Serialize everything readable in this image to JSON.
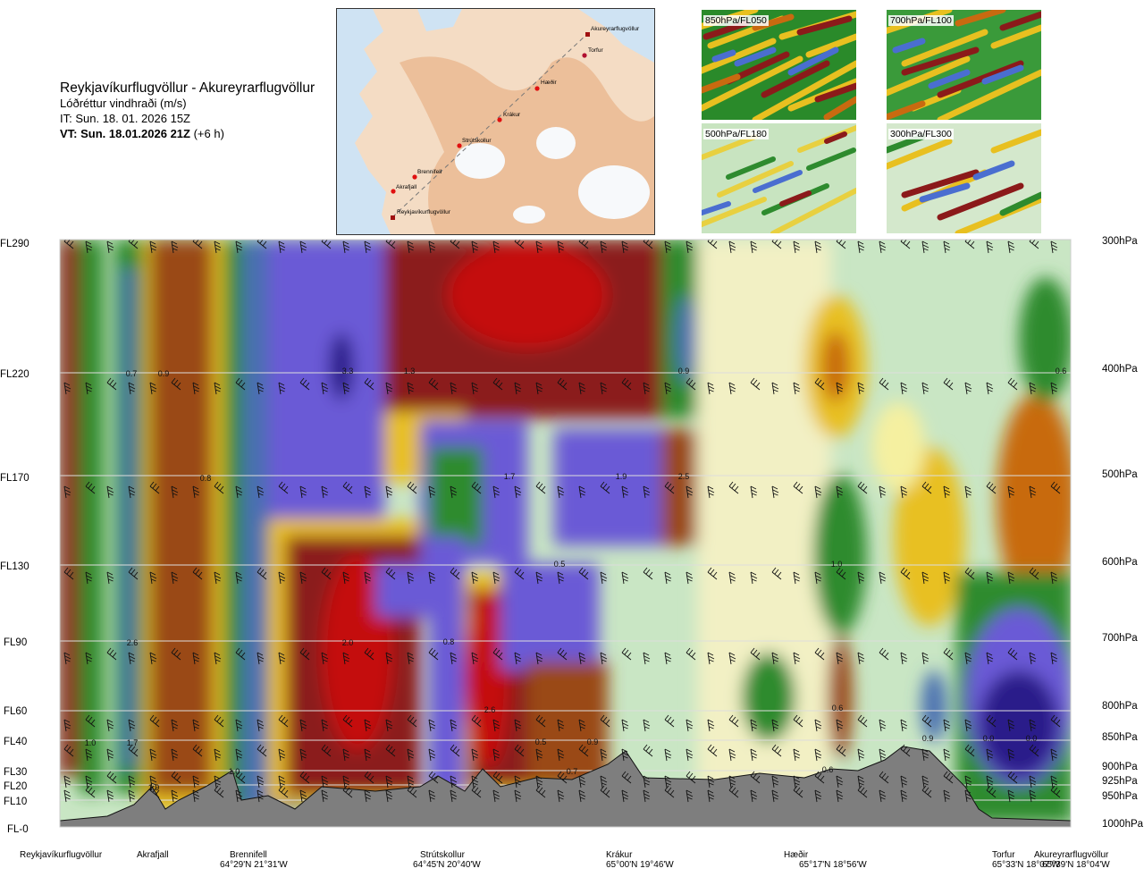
{
  "header": {
    "route": "Reykjavíkurflugvöllur - Akureyrarflugvöllur",
    "product": "Lóðréttur vindhraði (m/s)",
    "it": "IT: Sun. 18. 01. 2026 15Z",
    "vt_bold": "VT: Sun. 18.01.2026 21Z",
    "vt_offset": "(+6 h)"
  },
  "route_map": {
    "waypoints": [
      "Akureyrarflugvöllur",
      "Torfur",
      "Hæðir",
      "Krákur",
      "Strútskollur",
      "Brennifell",
      "Akrafjall",
      "Reykjavíkurflugvöllur"
    ]
  },
  "mini_maps": [
    {
      "label": "850hPa/FL050"
    },
    {
      "label": "700hPa/FL100"
    },
    {
      "label": "500hPa/FL180"
    },
    {
      "label": "300hPa/FL300"
    }
  ],
  "bottom_stations": [
    {
      "name": "Reykjavíkurflugvöllur",
      "coords": ""
    },
    {
      "name": "Akrafjall",
      "coords": ""
    },
    {
      "name": "Brennifell",
      "coords": "64°29'N 21°31'W"
    },
    {
      "name": "Strútskollur",
      "coords": "64°45'N 20°40'W"
    },
    {
      "name": "Krákur",
      "coords": "65°00'N 19°46'W"
    },
    {
      "name": "Hæðir",
      "coords": "65°17'N 18°56'W"
    },
    {
      "name": "Torfur",
      "coords": "65°33'N 18°07'W"
    },
    {
      "name": "Akureyrarflugvöllur",
      "coords": "65°39'N 18°04'W"
    }
  ],
  "chart_data": {
    "type": "heatmap",
    "xlabel": "",
    "ylabel": "",
    "left_axis_labels": [
      "FL290",
      "FL220",
      "FL170",
      "FL130",
      "FL90",
      "FL60",
      "FL40",
      "FL30",
      "FL20",
      "FL10",
      "FL-0"
    ],
    "right_axis_labels": [
      "300hPa",
      "400hPa",
      "500hPa",
      "600hPa",
      "700hPa",
      "800hPa",
      "850hPa",
      "900hPa",
      "925hPa",
      "950hPa",
      "1000hPa"
    ],
    "pressure_levels_hPa": [
      300,
      400,
      500,
      600,
      700,
      800,
      850,
      900,
      925,
      950,
      1000
    ],
    "value_labels": [
      "0.7",
      "0.9",
      "3.3",
      "1.3",
      "0.9",
      "0.6",
      "0.8",
      "1.7",
      "1.9",
      "2.5",
      "0.5",
      "1.0",
      "2.6",
      "2.0",
      "0.8",
      "1.0",
      "1.7",
      "1.0",
      "1.9",
      "2.6",
      "0.5",
      "0.9",
      "0.7",
      "0.6",
      "0.9",
      "0.6",
      "0.0",
      "0.0"
    ]
  }
}
